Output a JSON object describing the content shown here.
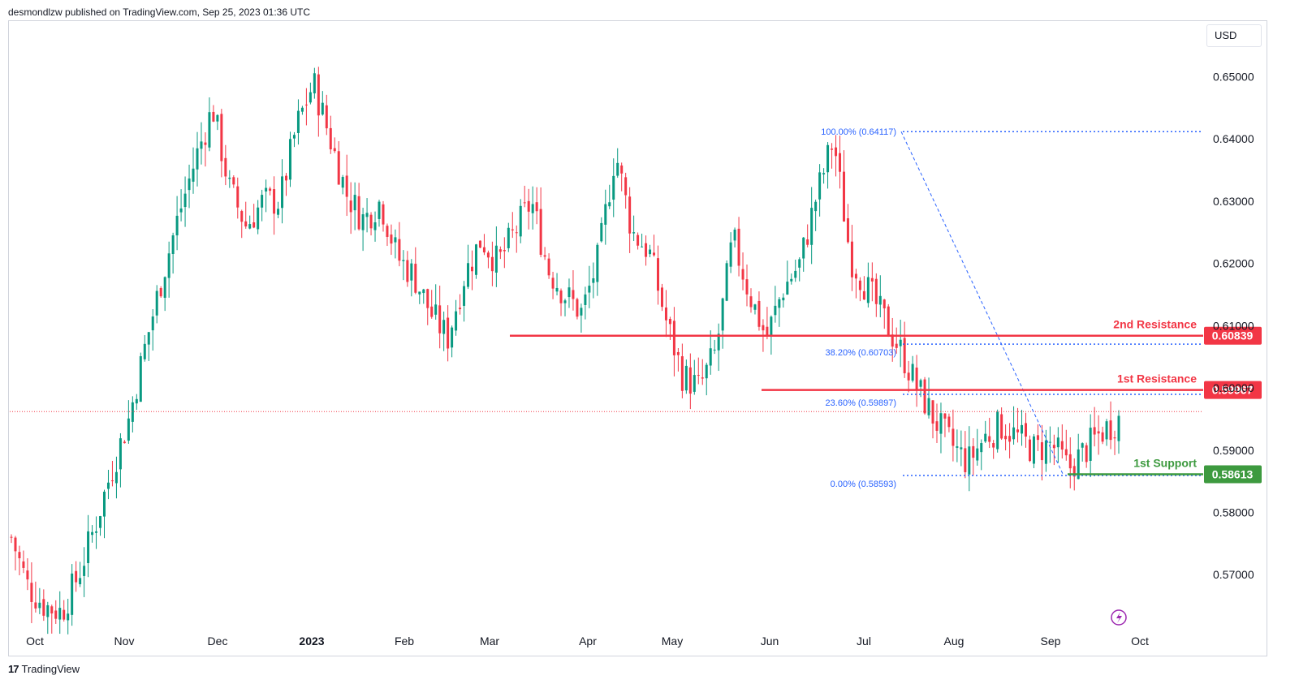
{
  "header": {
    "publisher": "desmondlzw published on TradingView.com, Sep 25, 2023 01:36 UTC"
  },
  "currency": "USD",
  "footer": {
    "brand": "TradingView",
    "mark": "17"
  },
  "colors": {
    "up": "#089981",
    "down": "#f23645",
    "fib": "#2962ff",
    "resistance": "#f23645",
    "support": "#3d9a3f"
  },
  "chart_data": {
    "type": "candlestick",
    "instrument_currency": "USD",
    "y_axis": {
      "ticks": [
        "0.57000",
        "0.58000",
        "0.59000",
        "0.60000",
        "0.61000",
        "0.62000",
        "0.63000",
        "0.64000",
        "0.65000"
      ],
      "tick_values": [
        0.57,
        0.58,
        0.59,
        0.6,
        0.61,
        0.62,
        0.63,
        0.64,
        0.65
      ],
      "range": [
        0.5613,
        0.6584
      ]
    },
    "x_axis": {
      "ticks": [
        "Oct",
        "Nov",
        "Dec",
        "2023",
        "Feb",
        "Mar",
        "Apr",
        "May",
        "Jun",
        "Jul",
        "Aug",
        "Sep",
        "Oct"
      ],
      "bold_ticks": [
        "2023"
      ]
    },
    "close_path": [
      0.576,
      0.568,
      0.565,
      0.564,
      0.57,
      0.578,
      0.587,
      0.595,
      0.607,
      0.618,
      0.628,
      0.637,
      0.645,
      0.632,
      0.626,
      0.63,
      0.63,
      0.642,
      0.649,
      0.64,
      0.631,
      0.627,
      0.63,
      0.621,
      0.618,
      0.612,
      0.608,
      0.618,
      0.624,
      0.62,
      0.625,
      0.63,
      0.619,
      0.615,
      0.612,
      0.621,
      0.638,
      0.625,
      0.622,
      0.611,
      0.602,
      0.6,
      0.606,
      0.624,
      0.615,
      0.608,
      0.616,
      0.62,
      0.631,
      0.64,
      0.621,
      0.616,
      0.611,
      0.606,
      0.6,
      0.595,
      0.591,
      0.588,
      0.592,
      0.594,
      0.592,
      0.59,
      0.591,
      0.587,
      0.59,
      0.593,
      0.595
    ],
    "levels": [
      {
        "name": "2nd Resistance",
        "value": "0.60839",
        "price": 0.60839,
        "color": "#f23645"
      },
      {
        "name": "1st Resistance",
        "value": "0.59967",
        "price": 0.59967,
        "color": "#f23645"
      },
      {
        "name": "1st Support",
        "value": "0.58613",
        "price": 0.58613,
        "color": "#3d9a3f"
      }
    ],
    "fibonacci": [
      {
        "label": "100.00% (0.64117)",
        "price": 0.64117
      },
      {
        "label": "38.20% (0.60703)",
        "price": 0.60703
      },
      {
        "label": "23.60% (0.59897)",
        "price": 0.59897
      },
      {
        "label": "0.00% (0.58593)",
        "price": 0.58593
      }
    ],
    "current_price": 0.5962,
    "grid": false,
    "legend": "none"
  }
}
